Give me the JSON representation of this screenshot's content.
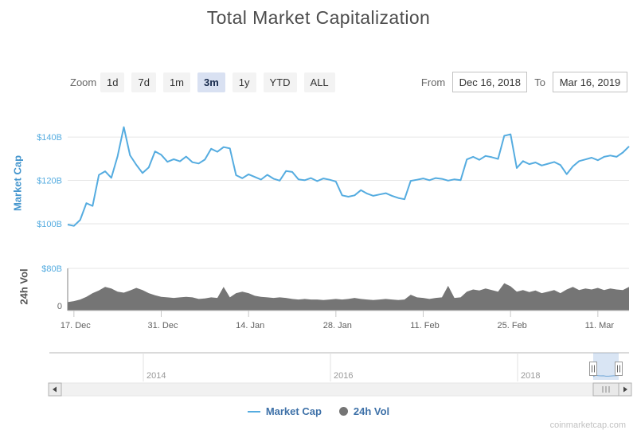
{
  "title": "Total Market Capitalization",
  "watermark": "coinmarketcap.com",
  "toolbar": {
    "zoom_label": "Zoom",
    "zoom_buttons": [
      "1d",
      "7d",
      "1m",
      "3m",
      "1y",
      "YTD",
      "ALL"
    ],
    "selected_zoom": "3m",
    "from_label": "From",
    "from_value": "Dec 16, 2018",
    "to_label": "To",
    "to_value": "Mar 16, 2019"
  },
  "legend": [
    {
      "label": "Market Cap",
      "marker": "line",
      "color": "#55ACE0"
    },
    {
      "label": "24h Vol",
      "marker": "circle",
      "color": "#757575"
    }
  ],
  "navigator": {
    "year_labels": [
      "2014",
      "2016",
      "2018"
    ]
  },
  "chart_data": [
    {
      "type": "line",
      "name": "Market Cap",
      "color": "#55ACE0",
      "ylabel": "Market Cap",
      "units": "USD billions",
      "x_start": "Dec 16, 2018",
      "x_end": "Mar 16, 2019",
      "x_step_days": 1,
      "ylim": [
        93,
        146.3
      ],
      "grid": true,
      "yticks": [
        {
          "value": 140,
          "label": "$140B"
        },
        {
          "value": 120,
          "label": "$120B"
        },
        {
          "value": 100,
          "label": "$100B"
        }
      ],
      "xticks": [
        {
          "day": 1,
          "label": "17. Dec"
        },
        {
          "day": 15,
          "label": "31. Dec"
        },
        {
          "day": 29,
          "label": "14. Jan"
        },
        {
          "day": 43,
          "label": "28. Jan"
        },
        {
          "day": 57,
          "label": "11. Feb"
        },
        {
          "day": 71,
          "label": "25. Feb"
        },
        {
          "day": 85,
          "label": "11. Mar"
        }
      ],
      "values": [
        99.6,
        99.0,
        101.8,
        109.5,
        108.2,
        122.5,
        124.2,
        121.2,
        131.2,
        144.6,
        131.6,
        127.2,
        123.4,
        126.0,
        133.4,
        131.8,
        128.6,
        129.8,
        128.8,
        131.0,
        128.4,
        127.8,
        129.6,
        134.6,
        133.2,
        135.4,
        134.8,
        122.4,
        121.0,
        122.8,
        121.6,
        120.4,
        122.6,
        120.8,
        119.9,
        124.3,
        123.9,
        120.5,
        120.1,
        121.1,
        119.7,
        120.9,
        120.3,
        119.5,
        113.1,
        112.5,
        113.1,
        115.5,
        113.9,
        112.9,
        113.5,
        114.1,
        112.9,
        111.9,
        111.3,
        119.8,
        120.3,
        120.9,
        120.1,
        121.1,
        120.7,
        119.9,
        120.5,
        120.1,
        129.7,
        130.9,
        129.5,
        131.3,
        130.7,
        129.9,
        140.6,
        141.3,
        125.7,
        128.9,
        127.5,
        128.3,
        126.9,
        127.7,
        128.5,
        127.1,
        122.9,
        126.5,
        128.9,
        129.7,
        130.5,
        129.3,
        130.9,
        131.5,
        130.9,
        132.9,
        135.7
      ]
    },
    {
      "type": "area",
      "name": "24h Vol",
      "color": "#757575",
      "ylabel": "24h Vol",
      "units": "USD billions",
      "x_start": "Dec 16, 2018",
      "x_end": "Mar 16, 2019",
      "x_step_days": 1,
      "ylim": [
        0,
        80
      ],
      "yticks": [
        {
          "value": 80,
          "label": "$80B"
        },
        {
          "value": 0,
          "label": "0"
        }
      ],
      "values": [
        16,
        18,
        21,
        26,
        33,
        38,
        45,
        42,
        36,
        34,
        38,
        43,
        39,
        33,
        29,
        26,
        25,
        24,
        25,
        26,
        25,
        22,
        23,
        25,
        24,
        45,
        25,
        33,
        36,
        33,
        28,
        26,
        25,
        24,
        25,
        24,
        22,
        21,
        22,
        21,
        21,
        20,
        21,
        22,
        21,
        22,
        24,
        22,
        21,
        20,
        21,
        22,
        21,
        20,
        21,
        30,
        25,
        24,
        22,
        24,
        25,
        47,
        24,
        25,
        36,
        40,
        38,
        42,
        39,
        36,
        52,
        46,
        36,
        39,
        35,
        38,
        33,
        36,
        39,
        33,
        40,
        45,
        39,
        42,
        40,
        43,
        39,
        42,
        40,
        39,
        45
      ]
    }
  ]
}
